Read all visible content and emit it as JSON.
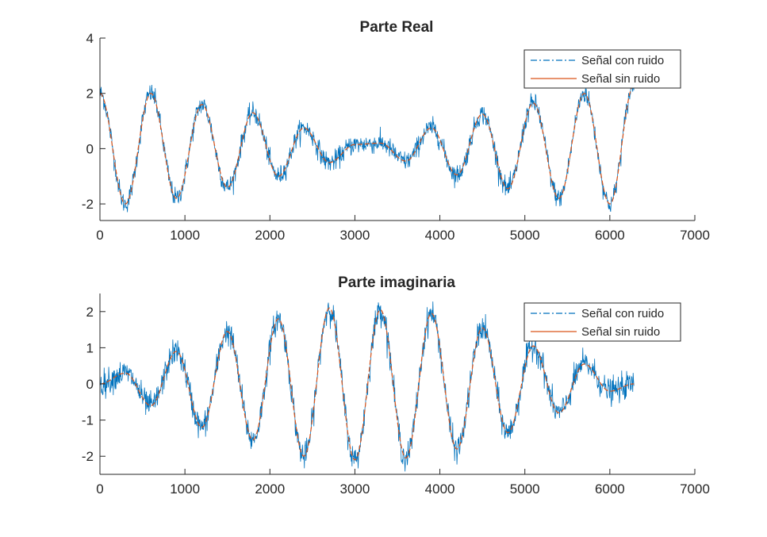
{
  "colors": {
    "noisy": "#0072BD",
    "clean": "#D95319",
    "axis": "#262626",
    "background": "#ffffff"
  },
  "chart_data": [
    {
      "type": "line",
      "title": "Parte Real",
      "xlabel": "",
      "ylabel": "",
      "xlim": [
        0,
        7000
      ],
      "ylim": [
        -2.6,
        4
      ],
      "xticks": [
        0,
        1000,
        2000,
        3000,
        4000,
        5000,
        6000,
        7000
      ],
      "xtick_labels": [
        "0",
        "1000",
        "2000",
        "3000",
        "4000",
        "5000",
        "6000",
        "7000"
      ],
      "yticks": [
        -2,
        0,
        2,
        4
      ],
      "ytick_labels": [
        "-2",
        "0",
        "2",
        "4"
      ],
      "legend_position": "top-right",
      "grid": false,
      "series": [
        {
          "name": "Señal con ruido",
          "style": "dash-dot",
          "noise_std": 0.18,
          "x": [
            0,
            300,
            600,
            900,
            1200,
            1500,
            1800,
            2100,
            2400,
            2700,
            3000,
            3300,
            3600,
            3900,
            4200,
            4500,
            4800,
            5100,
            5400,
            5700,
            6000,
            6283
          ],
          "values": [
            2.0,
            -2.0,
            2.0,
            -1.8,
            1.6,
            -1.4,
            1.3,
            -1.0,
            0.75,
            -0.5,
            0.15,
            0.2,
            -0.45,
            0.75,
            -0.95,
            1.25,
            -1.45,
            1.65,
            -1.8,
            2.0,
            -2.0,
            2.3
          ]
        },
        {
          "name": "Señal sin ruido",
          "style": "solid",
          "x": [
            0,
            300,
            600,
            900,
            1200,
            1500,
            1800,
            2100,
            2400,
            2700,
            3000,
            3300,
            3600,
            3900,
            4200,
            4500,
            4800,
            5100,
            5400,
            5700,
            6000,
            6283
          ],
          "values": [
            2.0,
            -2.0,
            2.0,
            -1.8,
            1.6,
            -1.4,
            1.3,
            -1.0,
            0.75,
            -0.5,
            0.15,
            0.2,
            -0.45,
            0.75,
            -0.95,
            1.25,
            -1.45,
            1.65,
            -1.8,
            2.0,
            -2.0,
            2.3
          ]
        }
      ]
    },
    {
      "type": "line",
      "title": "Parte imaginaria",
      "xlabel": "",
      "ylabel": "",
      "xlim": [
        0,
        7000
      ],
      "ylim": [
        -2.5,
        2.5
      ],
      "xticks": [
        0,
        1000,
        2000,
        3000,
        4000,
        5000,
        6000,
        7000
      ],
      "xtick_labels": [
        "0",
        "1000",
        "2000",
        "3000",
        "4000",
        "5000",
        "6000",
        "7000"
      ],
      "yticks": [
        -2,
        -1,
        0,
        1,
        2
      ],
      "ytick_labels": [
        "-2",
        "-1",
        "0",
        "1",
        "2"
      ],
      "legend_position": "top-right",
      "grid": false,
      "series": [
        {
          "name": "Señal con ruido",
          "style": "dash-dot",
          "noise_std": 0.18,
          "x": [
            0,
            300,
            600,
            900,
            1200,
            1500,
            1800,
            2100,
            2400,
            2700,
            3000,
            3300,
            3600,
            3900,
            4200,
            4500,
            4800,
            5100,
            5400,
            5700,
            6000,
            6283
          ],
          "values": [
            0.0,
            0.3,
            -0.6,
            0.9,
            -1.2,
            1.45,
            -1.55,
            1.8,
            -2.0,
            2.1,
            -2.1,
            2.05,
            -2.05,
            1.95,
            -1.8,
            1.55,
            -1.35,
            1.05,
            -0.8,
            0.55,
            -0.2,
            0.0
          ]
        },
        {
          "name": "Señal sin ruido",
          "style": "solid",
          "x": [
            0,
            300,
            600,
            900,
            1200,
            1500,
            1800,
            2100,
            2400,
            2700,
            3000,
            3300,
            3600,
            3900,
            4200,
            4500,
            4800,
            5100,
            5400,
            5700,
            6000,
            6283
          ],
          "values": [
            0.0,
            0.3,
            -0.6,
            0.9,
            -1.2,
            1.45,
            -1.55,
            1.8,
            -2.0,
            2.1,
            -2.1,
            2.05,
            -2.05,
            1.95,
            -1.8,
            1.55,
            -1.35,
            1.05,
            -0.8,
            0.55,
            -0.2,
            0.0
          ]
        }
      ]
    }
  ]
}
